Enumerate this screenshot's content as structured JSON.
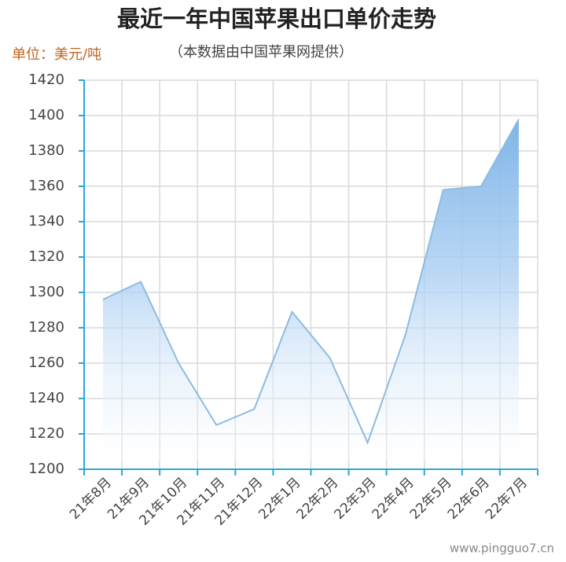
{
  "chart_data": {
    "type": "area",
    "title": "最近一年中国苹果出口单价走势",
    "unit_label": "单位：美元/吨",
    "subtitle": "（本数据由中国苹果网提供）",
    "watermark": "www.pingguo7.cn",
    "categories": [
      "21年8月",
      "21年9月",
      "21年10月",
      "21年11月",
      "21年12月",
      "22年1月",
      "22年2月",
      "22年3月",
      "22年4月",
      "22年5月",
      "22年6月",
      "22年7月"
    ],
    "values": [
      1296,
      1306,
      1260,
      1225,
      1234,
      1289,
      1263,
      1215,
      1276,
      1358,
      1360,
      1398
    ],
    "color": "#7db4e8",
    "ylim": [
      1200,
      1420
    ],
    "yticks": [
      1200,
      1220,
      1240,
      1260,
      1280,
      1300,
      1320,
      1340,
      1360,
      1380,
      1400,
      1420
    ],
    "grid": true
  }
}
